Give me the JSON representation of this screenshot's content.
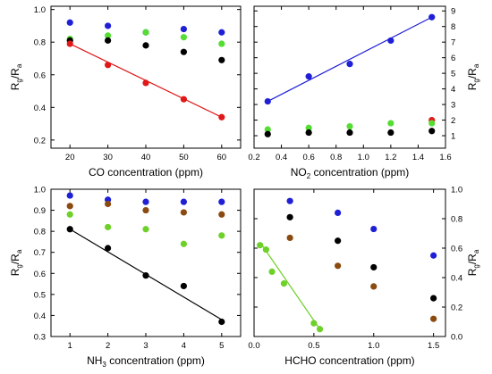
{
  "chart_data": [
    {
      "type": "scatter",
      "panel": "top-left",
      "xlabel": "CO concentration (ppm)",
      "ylabel": "Rg/Ra",
      "ylabel_main": "R",
      "ylabel_sub1": "g",
      "ylabel_sep": "/R",
      "ylabel_sub2": "a",
      "ylabel_side": "left",
      "xlim": [
        15,
        65
      ],
      "ylim": [
        0.15,
        1.02
      ],
      "xticks": [
        20,
        30,
        40,
        50,
        60
      ],
      "yticks": [
        0.2,
        0.4,
        0.6,
        0.8,
        1.0
      ],
      "yticklabels": [
        "0.2",
        "0.4",
        "0.6",
        "0.8",
        "1.0"
      ],
      "series": [
        {
          "color": "#1f1fd6",
          "x": [
            20,
            30,
            40,
            50,
            60
          ],
          "y": [
            0.92,
            0.9,
            0.86,
            0.88,
            0.86
          ]
        },
        {
          "color": "#55dd33",
          "x": [
            20,
            30,
            40,
            50,
            60
          ],
          "y": [
            0.82,
            0.84,
            0.86,
            0.83,
            0.79
          ]
        },
        {
          "color": "#000000",
          "x": [
            20,
            30,
            40,
            50,
            60
          ],
          "y": [
            0.81,
            0.81,
            0.78,
            0.74,
            0.69
          ]
        },
        {
          "color": "#e01818",
          "x": [
            20,
            30,
            40,
            50,
            60
          ],
          "y": [
            0.79,
            0.66,
            0.55,
            0.45,
            0.34
          ],
          "fit": [
            [
              20,
              0.79
            ],
            [
              60,
              0.34
            ]
          ]
        }
      ]
    },
    {
      "type": "scatter",
      "panel": "top-right",
      "xlabel": "NO2 concentration (ppm)",
      "xlabel_pre": "NO",
      "xlabel_sub": "2",
      "xlabel_post": " concentration (ppm)",
      "ylabel": "Rg/Ra",
      "ylabel_main": "R",
      "ylabel_sub1": "g",
      "ylabel_sep": "/R",
      "ylabel_sub2": "a",
      "ylabel_side": "right",
      "xlim": [
        0.2,
        1.6
      ],
      "ylim": [
        0.2,
        9.3
      ],
      "xticks": [
        0.2,
        0.4,
        0.6,
        0.8,
        1.0,
        1.2,
        1.4,
        1.6
      ],
      "xticklabels": [
        "0.2",
        "0.4",
        "0.6",
        "0.8",
        "1.0",
        "1.2",
        "1.4",
        "1.6"
      ],
      "yticks": [
        1,
        2,
        3,
        4,
        5,
        6,
        7,
        8,
        9
      ],
      "yticklabels": [
        "1",
        "2",
        "3",
        "4",
        "5",
        "6",
        "7",
        "8",
        "9"
      ],
      "series": [
        {
          "color": "#1f1fd6",
          "x": [
            0.3,
            0.6,
            0.9,
            1.2,
            1.5
          ],
          "y": [
            3.2,
            4.8,
            5.6,
            7.1,
            8.6
          ],
          "fit": [
            [
              0.3,
              3.2
            ],
            [
              1.5,
              8.6
            ]
          ]
        },
        {
          "color": "#e01818",
          "x": [
            1.5
          ],
          "y": [
            2.0
          ]
        },
        {
          "color": "#55dd33",
          "x": [
            0.3,
            0.6,
            0.9,
            1.2,
            1.5
          ],
          "y": [
            1.4,
            1.5,
            1.6,
            1.8,
            1.8
          ]
        },
        {
          "color": "#000000",
          "x": [
            0.3,
            0.6,
            0.9,
            1.2,
            1.5
          ],
          "y": [
            1.1,
            1.2,
            1.2,
            1.2,
            1.3
          ]
        }
      ]
    },
    {
      "type": "scatter",
      "panel": "bottom-left",
      "xlabel": "NH3 concentration (ppm)",
      "xlabel_pre": "NH",
      "xlabel_sub": "3",
      "xlabel_post": " concentration (ppm)",
      "ylabel": "Rg/Ra",
      "ylabel_main": "R",
      "ylabel_sub1": "g",
      "ylabel_sep": "/R",
      "ylabel_sub2": "a",
      "ylabel_side": "left",
      "xlim": [
        0.5,
        5.5
      ],
      "ylim": [
        0.3,
        1.0
      ],
      "xticks": [
        1,
        2,
        3,
        4,
        5
      ],
      "yticks": [
        0.3,
        0.4,
        0.5,
        0.6,
        0.7,
        0.8,
        0.9,
        1.0
      ],
      "yticklabels": [
        "0.3",
        "0.4",
        "0.5",
        "0.6",
        "0.7",
        "0.8",
        "0.9",
        "1.0"
      ],
      "series": [
        {
          "color": "#1f1fd6",
          "x": [
            1,
            2,
            3,
            4,
            5
          ],
          "y": [
            0.97,
            0.95,
            0.94,
            0.94,
            0.94
          ]
        },
        {
          "color": "#8a4a10",
          "x": [
            1,
            2,
            3,
            4,
            5
          ],
          "y": [
            0.92,
            0.93,
            0.9,
            0.89,
            0.88
          ]
        },
        {
          "color": "#6ed12a",
          "x": [
            1,
            2,
            3,
            4,
            5
          ],
          "y": [
            0.88,
            0.82,
            0.81,
            0.74,
            0.78
          ]
        },
        {
          "color": "#000000",
          "x": [
            1,
            2,
            3,
            4,
            5
          ],
          "y": [
            0.81,
            0.72,
            0.59,
            0.54,
            0.37
          ],
          "fit": [
            [
              1,
              0.81
            ],
            [
              5,
              0.38
            ]
          ]
        }
      ]
    },
    {
      "type": "scatter",
      "panel": "bottom-right",
      "xlabel": "HCHO concentration (ppm)",
      "ylabel": "Rg/Ra",
      "ylabel_main": "R",
      "ylabel_sub1": "g",
      "ylabel_sep": "/R",
      "ylabel_sub2": "a",
      "ylabel_side": "right",
      "xlim": [
        0.0,
        1.6
      ],
      "ylim": [
        0.0,
        1.0
      ],
      "xticks": [
        0.0,
        0.5,
        1.0,
        1.5
      ],
      "xticklabels": [
        "0.0",
        "0.5",
        "1.0",
        "1.5"
      ],
      "yticks": [
        0.0,
        0.2,
        0.4,
        0.6,
        0.8,
        1.0
      ],
      "yticklabels": [
        "0.0",
        "0.2",
        "0.4",
        "0.6",
        "0.8",
        "1.0"
      ],
      "series": [
        {
          "color": "#1f1fd6",
          "x": [
            0.3,
            0.7,
            1.0,
            1.5
          ],
          "y": [
            0.92,
            0.84,
            0.73,
            0.55
          ]
        },
        {
          "color": "#000000",
          "x": [
            0.3,
            0.7,
            1.0,
            1.5
          ],
          "y": [
            0.81,
            0.65,
            0.47,
            0.26
          ]
        },
        {
          "color": "#8a4a10",
          "x": [
            0.3,
            0.7,
            1.0,
            1.5
          ],
          "y": [
            0.67,
            0.48,
            0.34,
            0.12
          ]
        },
        {
          "color": "#6ed12a",
          "x": [
            0.05,
            0.1,
            0.15,
            0.25,
            0.5,
            0.55
          ],
          "y": [
            0.62,
            0.59,
            0.44,
            0.36,
            0.09,
            0.05
          ],
          "fit": [
            [
              0.05,
              0.64
            ],
            [
              0.55,
              0.05
            ]
          ]
        }
      ]
    }
  ]
}
